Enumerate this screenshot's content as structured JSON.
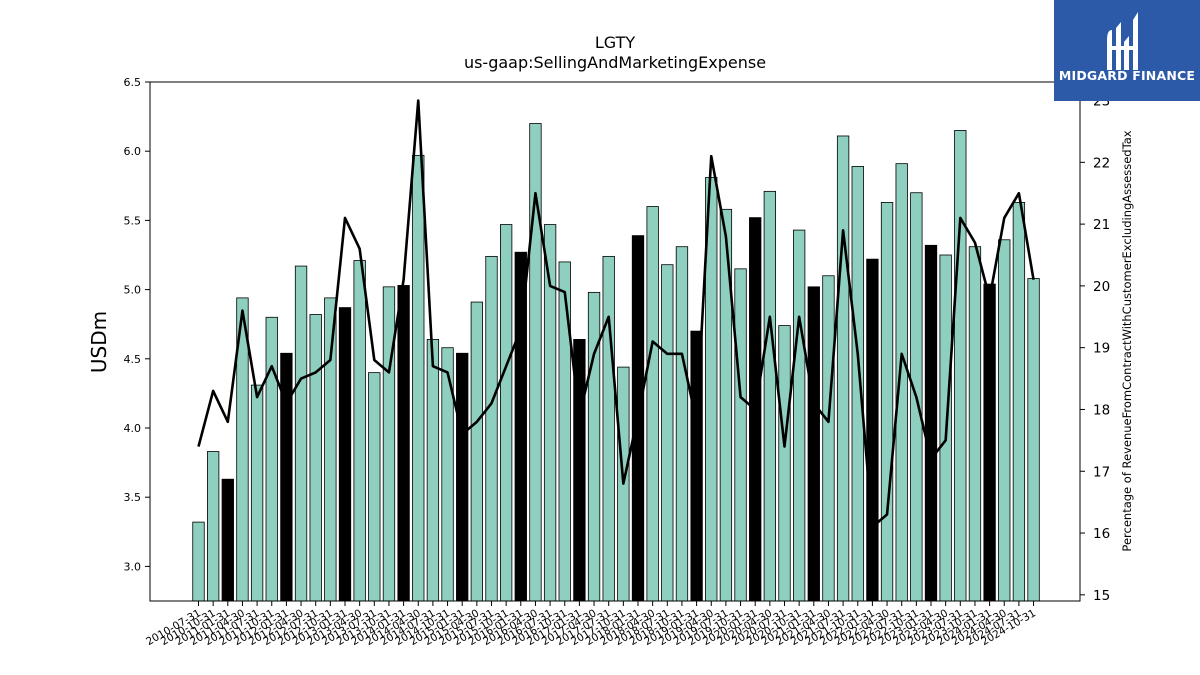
{
  "chart_data": {
    "type": "bar",
    "title": "LGTY",
    "subtitle": "us-gaap:SellingAndMarketingExpense",
    "ylabel": "USDm",
    "y2label": "Percentage of RevenueFromContractWithCustomerExcludingAssessedTax",
    "ylim": [
      2.75,
      6.5
    ],
    "yticks": [
      3.0,
      3.5,
      4.0,
      4.5,
      5.0,
      5.5,
      6.0,
      6.5
    ],
    "y2lim": [
      14.9,
      23.3
    ],
    "y2ticks": [
      15,
      16,
      17,
      18,
      19,
      20,
      21,
      22,
      23
    ],
    "categories": [
      "2010-07-31",
      "2010-10-31",
      "2011-01-31",
      "2011-04-30",
      "2011-07-31",
      "2011-10-31",
      "2012-01-31",
      "2012-04-30",
      "2012-07-31",
      "2012-10-31",
      "2013-01-31",
      "2013-04-30",
      "2013-07-31",
      "2013-10-31",
      "2014-01-31",
      "2014-04-30",
      "2014-07-31",
      "2014-10-31",
      "2015-01-31",
      "2015-04-30",
      "2015-07-31",
      "2015-10-31",
      "2016-01-31",
      "2016-04-30",
      "2016-07-31",
      "2016-10-31",
      "2017-01-31",
      "2017-04-30",
      "2017-07-31",
      "2017-10-31",
      "2018-01-31",
      "2018-04-30",
      "2018-07-31",
      "2018-10-31",
      "2019-01-31",
      "2019-04-30",
      "2019-07-31",
      "2019-10-31",
      "2020-01-31",
      "2020-04-30",
      "2020-07-31",
      "2020-10-31",
      "2021-01-31",
      "2021-04-30",
      "2021-07-31",
      "2021-10-31",
      "2022-01-31",
      "2022-04-30",
      "2022-07-31",
      "2022-10-31",
      "2023-01-31",
      "2023-04-30",
      "2023-07-31",
      "2023-10-31",
      "2024-01-31",
      "2024-04-30",
      "2024-07-31",
      "2024-10-31"
    ],
    "xticklabels": [
      "2010-07-31",
      "2010-10-31",
      "2011-01-31",
      "2011-04-30",
      "2011-07-31",
      "2011-10-31",
      "2012-01-31",
      "2012-04-30",
      "2012-07-31",
      "2012-10-31",
      "2013-01-31",
      "2013-04-30",
      "2013-07-31",
      "2013-10-31",
      "2014-01-31",
      "2014-04-30",
      "2014-07-31",
      "2014-10-31",
      "2015-01-31",
      "2015-04-30",
      "2015-07-31",
      "2015-10-31",
      "2016-01-31",
      "2016-04-30",
      "2016-07-31",
      "2016-10-31",
      "2017-01-31",
      "2017-04-30",
      "2017-07-31",
      "2017-10-31",
      "2018-01-31",
      "2018-04-30",
      "2018-07-31",
      "2018-10-31",
      "2019-01-31",
      "2019-04-30",
      "2019-07-31",
      "2019-10-31",
      "2020-01-31",
      "2020-04-30",
      "2020-07-31",
      "2020-10-31",
      "2021-01-31",
      "2021-04-30",
      "2021-07-31",
      "2021-10-31",
      "2022-01-31",
      "2022-04-30",
      "2022-07-31",
      "2022-10-31",
      "2023-01-31",
      "2023-04-30",
      "2023-07-31",
      "2023-10-31",
      "2024-01-31",
      "2024-04-30",
      "2024-07-31",
      "2024-10-31"
    ],
    "values": [
      3.32,
      3.83,
      3.63,
      4.94,
      4.31,
      4.8,
      4.54,
      5.17,
      4.82,
      4.94,
      4.87,
      5.21,
      4.4,
      5.02,
      5.03,
      5.97,
      4.64,
      4.58,
      4.54,
      4.91,
      5.24,
      5.47,
      5.27,
      6.2,
      5.47,
      5.2,
      4.64,
      4.98,
      5.24,
      4.44,
      5.39,
      5.6,
      5.18,
      5.31,
      4.7,
      5.81,
      5.58,
      5.15,
      5.52,
      5.71,
      4.74,
      5.43,
      5.02,
      5.1,
      6.11,
      5.89,
      5.22,
      5.63,
      5.91,
      5.7,
      5.32,
      5.25,
      6.15,
      5.31,
      5.04,
      5.36,
      5.63,
      5.08
    ],
    "highlighted": [
      false,
      false,
      true,
      false,
      false,
      false,
      true,
      false,
      false,
      false,
      true,
      false,
      false,
      false,
      true,
      false,
      false,
      false,
      true,
      false,
      false,
      false,
      true,
      false,
      false,
      false,
      true,
      false,
      false,
      false,
      true,
      false,
      false,
      false,
      true,
      false,
      false,
      false,
      true,
      false,
      false,
      false,
      true,
      false,
      false,
      false,
      true,
      false,
      false,
      false,
      true,
      false,
      false,
      false,
      true,
      false,
      false,
      false
    ],
    "series": [
      {
        "type": "line",
        "axis": "right",
        "values": [
          17.4,
          18.3,
          17.8,
          19.6,
          18.2,
          18.7,
          18.1,
          18.5,
          18.6,
          18.8,
          21.1,
          20.6,
          18.8,
          18.6,
          20.1,
          23.0,
          18.7,
          18.6,
          17.6,
          17.8,
          18.1,
          18.7,
          19.3,
          21.5,
          20.0,
          19.9,
          17.9,
          18.9,
          19.5,
          16.8,
          17.9,
          19.1,
          18.9,
          18.9,
          17.8,
          22.1,
          20.8,
          18.2,
          18.0,
          19.5,
          17.4,
          19.5,
          18.1,
          17.8,
          20.9,
          18.9,
          16.1,
          16.3,
          18.9,
          18.2,
          17.2,
          17.5,
          21.1,
          20.7,
          19.8,
          21.1,
          21.5,
          20.1
        ]
      }
    ],
    "colors": {
      "bar": "#8ecfc0",
      "bar_highlight": "#000000",
      "line": "#000000"
    },
    "grid": false
  },
  "logo": {
    "text": "MIDGARD FINANCE",
    "color": "#2c5aa8"
  }
}
